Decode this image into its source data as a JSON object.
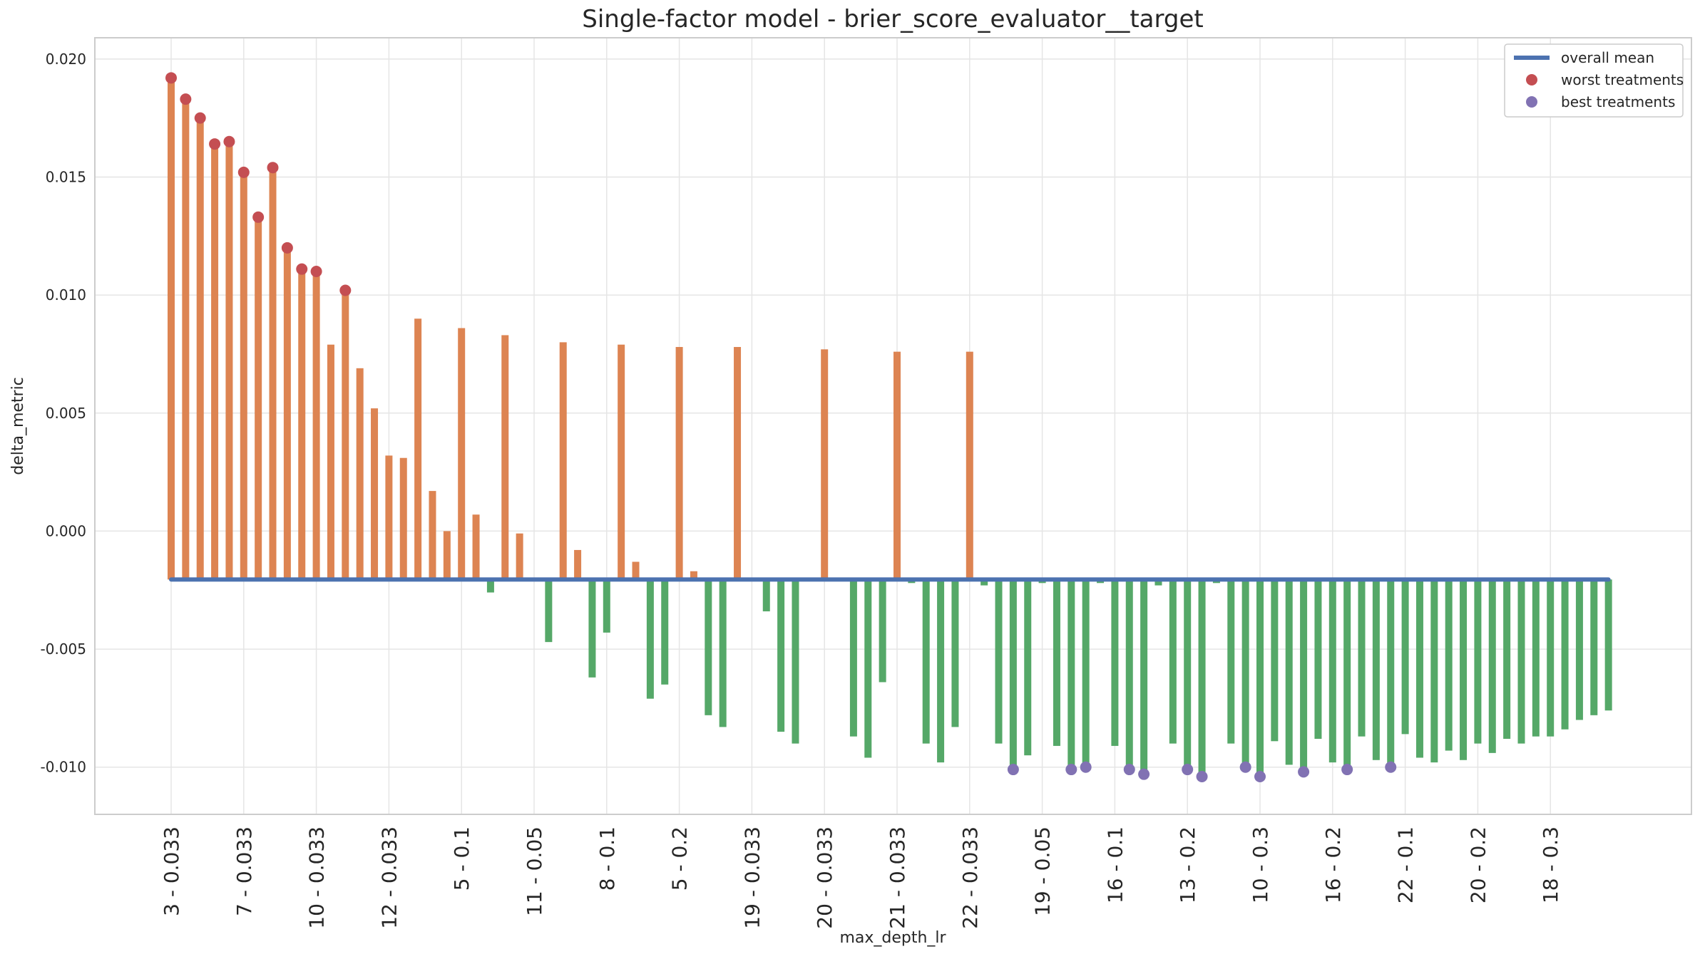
{
  "chart_data": {
    "type": "bar",
    "title": "Single-factor model - brier_score_evaluator__target",
    "xlabel": "max_depth_lr",
    "ylabel": "delta_metric",
    "ylim": [
      -0.012,
      0.0209
    ],
    "y_ticks": [
      "0.020",
      "0.015",
      "0.010",
      "0.005",
      "0.000",
      "-0.005",
      "-0.010"
    ],
    "y_tick_values": [
      0.02,
      0.015,
      0.01,
      0.005,
      0.0,
      -0.005,
      -0.01
    ],
    "x_tick_labels": [
      "3 - 0.033",
      "7 - 0.033",
      "10 - 0.033",
      "12 - 0.033",
      "5 - 0.1",
      "11 - 0.05",
      "8 - 0.1",
      "5 - 0.2",
      "19 - 0.033",
      "20 - 0.033",
      "21 - 0.033",
      "22 - 0.033",
      "19 - 0.05",
      "16 - 0.1",
      "13 - 0.2",
      "10 - 0.3",
      "16 - 0.2",
      "22 - 0.1",
      "20 - 0.2",
      "18 - 0.3"
    ],
    "x_tick_every": 5,
    "overall_mean": -0.00205,
    "values": [
      0.0192,
      0.0183,
      0.0175,
      0.0164,
      0.0165,
      0.0152,
      0.0133,
      0.0154,
      0.012,
      0.0111,
      0.011,
      0.0079,
      0.0102,
      0.0069,
      0.0052,
      0.0032,
      0.0031,
      0.009,
      0.0017,
      0.0,
      0.0086,
      0.0007,
      -0.0026,
      0.0083,
      -0.0001,
      -0.002,
      -0.0047,
      0.008,
      -0.0008,
      -0.0062,
      -0.0043,
      0.0079,
      -0.0013,
      -0.0071,
      -0.0065,
      0.0078,
      -0.0017,
      -0.0078,
      -0.0083,
      0.0078,
      -0.002,
      -0.0034,
      -0.0085,
      -0.009,
      -0.002,
      0.0077,
      -0.002,
      -0.0087,
      -0.0096,
      -0.0064,
      0.0076,
      -0.0022,
      -0.009,
      -0.0098,
      -0.0083,
      0.0076,
      -0.0023,
      -0.009,
      -0.0101,
      -0.0095,
      -0.0022,
      -0.0091,
      -0.0101,
      -0.01,
      -0.0022,
      -0.0091,
      -0.0101,
      -0.0103,
      -0.0023,
      -0.009,
      -0.0101,
      -0.0104,
      -0.0022,
      -0.009,
      -0.01,
      -0.0104,
      -0.0089,
      -0.0099,
      -0.0102,
      -0.0088,
      -0.0098,
      -0.0101,
      -0.0087,
      -0.0097,
      -0.01,
      -0.0086,
      -0.0096,
      -0.0098,
      -0.0093,
      -0.0097,
      -0.009,
      -0.0094,
      -0.0088,
      -0.009,
      -0.0087,
      -0.0087,
      -0.0084,
      -0.008,
      -0.0078,
      -0.0076
    ],
    "worst_treatment_indices": [
      0,
      1,
      2,
      3,
      4,
      5,
      6,
      7,
      8,
      9,
      10,
      12
    ],
    "best_treatment_indices": [
      58,
      62,
      63,
      66,
      67,
      70,
      71,
      74,
      75,
      78,
      81,
      84
    ],
    "legend": {
      "placement": "top-right",
      "entries": [
        {
          "label": "overall mean",
          "kind": "line",
          "color": "#4c72b0"
        },
        {
          "label": "worst treatments",
          "kind": "point",
          "color": "#c44e52"
        },
        {
          "label": "best treatments",
          "kind": "point",
          "color": "#8172b3"
        }
      ]
    },
    "colors": {
      "above_mean": "#dd8452",
      "below_mean": "#55a868",
      "mean_line": "#4c72b0",
      "worst": "#c44e52",
      "best": "#8172b3",
      "grid": "#e5e5e5",
      "frame": "#cccccc"
    },
    "grid": true
  }
}
